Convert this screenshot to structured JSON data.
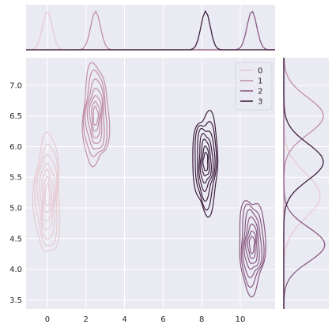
{
  "chart_data": {
    "type": "kde-jointplot",
    "title": "",
    "xlabel": "",
    "ylabel": "",
    "xlim": [
      -1.1,
      11.8
    ],
    "ylim": [
      3.35,
      7.45
    ],
    "x_ticks": [
      0,
      2,
      4,
      6,
      8,
      10
    ],
    "x_tick_labels": [
      "0",
      "2",
      "4",
      "6",
      "8",
      "10"
    ],
    "y_ticks": [
      3.5,
      4.0,
      4.5,
      5.0,
      5.5,
      6.0,
      6.5,
      7.0
    ],
    "y_tick_labels": [
      "3.5",
      "4.0",
      "4.5",
      "5.0",
      "5.5",
      "6.0",
      "6.5",
      "7.0"
    ],
    "grid": true,
    "legend_position": "upper right",
    "series": [
      {
        "name": "0",
        "color": "#e8cbd3",
        "center": [
          0.0,
          5.2
        ],
        "sd": [
          0.25,
          0.36
        ]
      },
      {
        "name": "1",
        "color": "#c18fa8",
        "center": [
          2.5,
          6.5
        ],
        "sd": [
          0.25,
          0.3
        ]
      },
      {
        "name": "2",
        "color": "#8b5a84",
        "center": [
          10.6,
          4.4
        ],
        "sd": [
          0.25,
          0.28
        ]
      },
      {
        "name": "3",
        "color": "#3e1f3f",
        "center": [
          8.2,
          5.75
        ],
        "sd": [
          0.24,
          0.3
        ]
      }
    ]
  }
}
